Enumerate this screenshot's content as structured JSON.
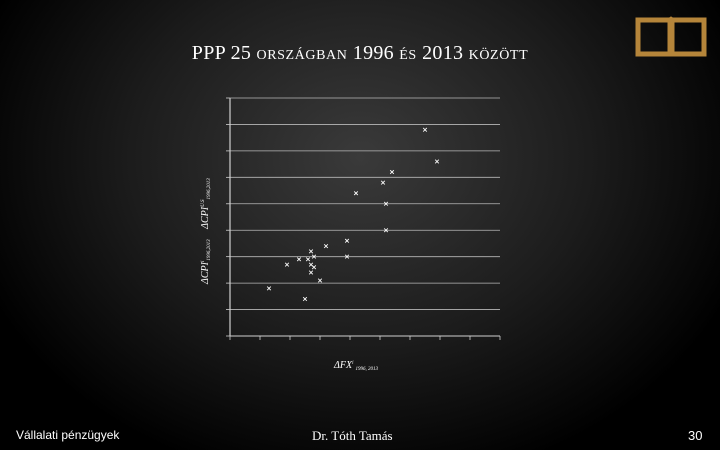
{
  "slide": {
    "title_prefix": "PPP 25 ",
    "title_word1": "országban",
    "title_year1": " 1996 ",
    "title_word2": "és",
    "title_year2": " 2013 ",
    "title_word3": "között",
    "footer_left": "Vállalati pénzügyek",
    "footer_center": "Dr. Tóth Tamás",
    "page_number": "30"
  },
  "icons": {
    "corner": "open-book-icon"
  },
  "colors": {
    "accent": "#b5853a",
    "background": "#000000",
    "grid": "#b8b8b8"
  },
  "chart_data": {
    "type": "scatter",
    "xlabel_main": "ΔFX",
    "xlabel_sup": "i",
    "xlabel_sub": "1996, 2013",
    "ylabel_left": "ΔCPI",
    "ylabel_left_sup": "i",
    "ylabel_left_sub": "1996,2013",
    "ylabel_right": "ΔCPI",
    "ylabel_right_sup": "U.S",
    "ylabel_right_sub": "1996,2013",
    "xlim": [
      0,
      9
    ],
    "ylim": [
      0,
      9
    ],
    "grid": true,
    "points": [
      {
        "x": 6.5,
        "y": 7.8
      },
      {
        "x": 6.9,
        "y": 6.6
      },
      {
        "x": 5.4,
        "y": 6.2
      },
      {
        "x": 5.1,
        "y": 5.8
      },
      {
        "x": 4.2,
        "y": 5.4
      },
      {
        "x": 5.2,
        "y": 5.0
      },
      {
        "x": 5.2,
        "y": 4.0
      },
      {
        "x": 3.9,
        "y": 3.6
      },
      {
        "x": 3.2,
        "y": 3.4
      },
      {
        "x": 2.7,
        "y": 3.2
      },
      {
        "x": 3.9,
        "y": 3.0
      },
      {
        "x": 2.8,
        "y": 3.0
      },
      {
        "x": 2.3,
        "y": 2.9
      },
      {
        "x": 2.6,
        "y": 2.9
      },
      {
        "x": 2.7,
        "y": 2.7
      },
      {
        "x": 2.8,
        "y": 2.6
      },
      {
        "x": 1.9,
        "y": 2.7
      },
      {
        "x": 2.7,
        "y": 2.4
      },
      {
        "x": 3.0,
        "y": 2.1
      },
      {
        "x": 1.3,
        "y": 1.8
      },
      {
        "x": 2.5,
        "y": 1.4
      }
    ]
  }
}
